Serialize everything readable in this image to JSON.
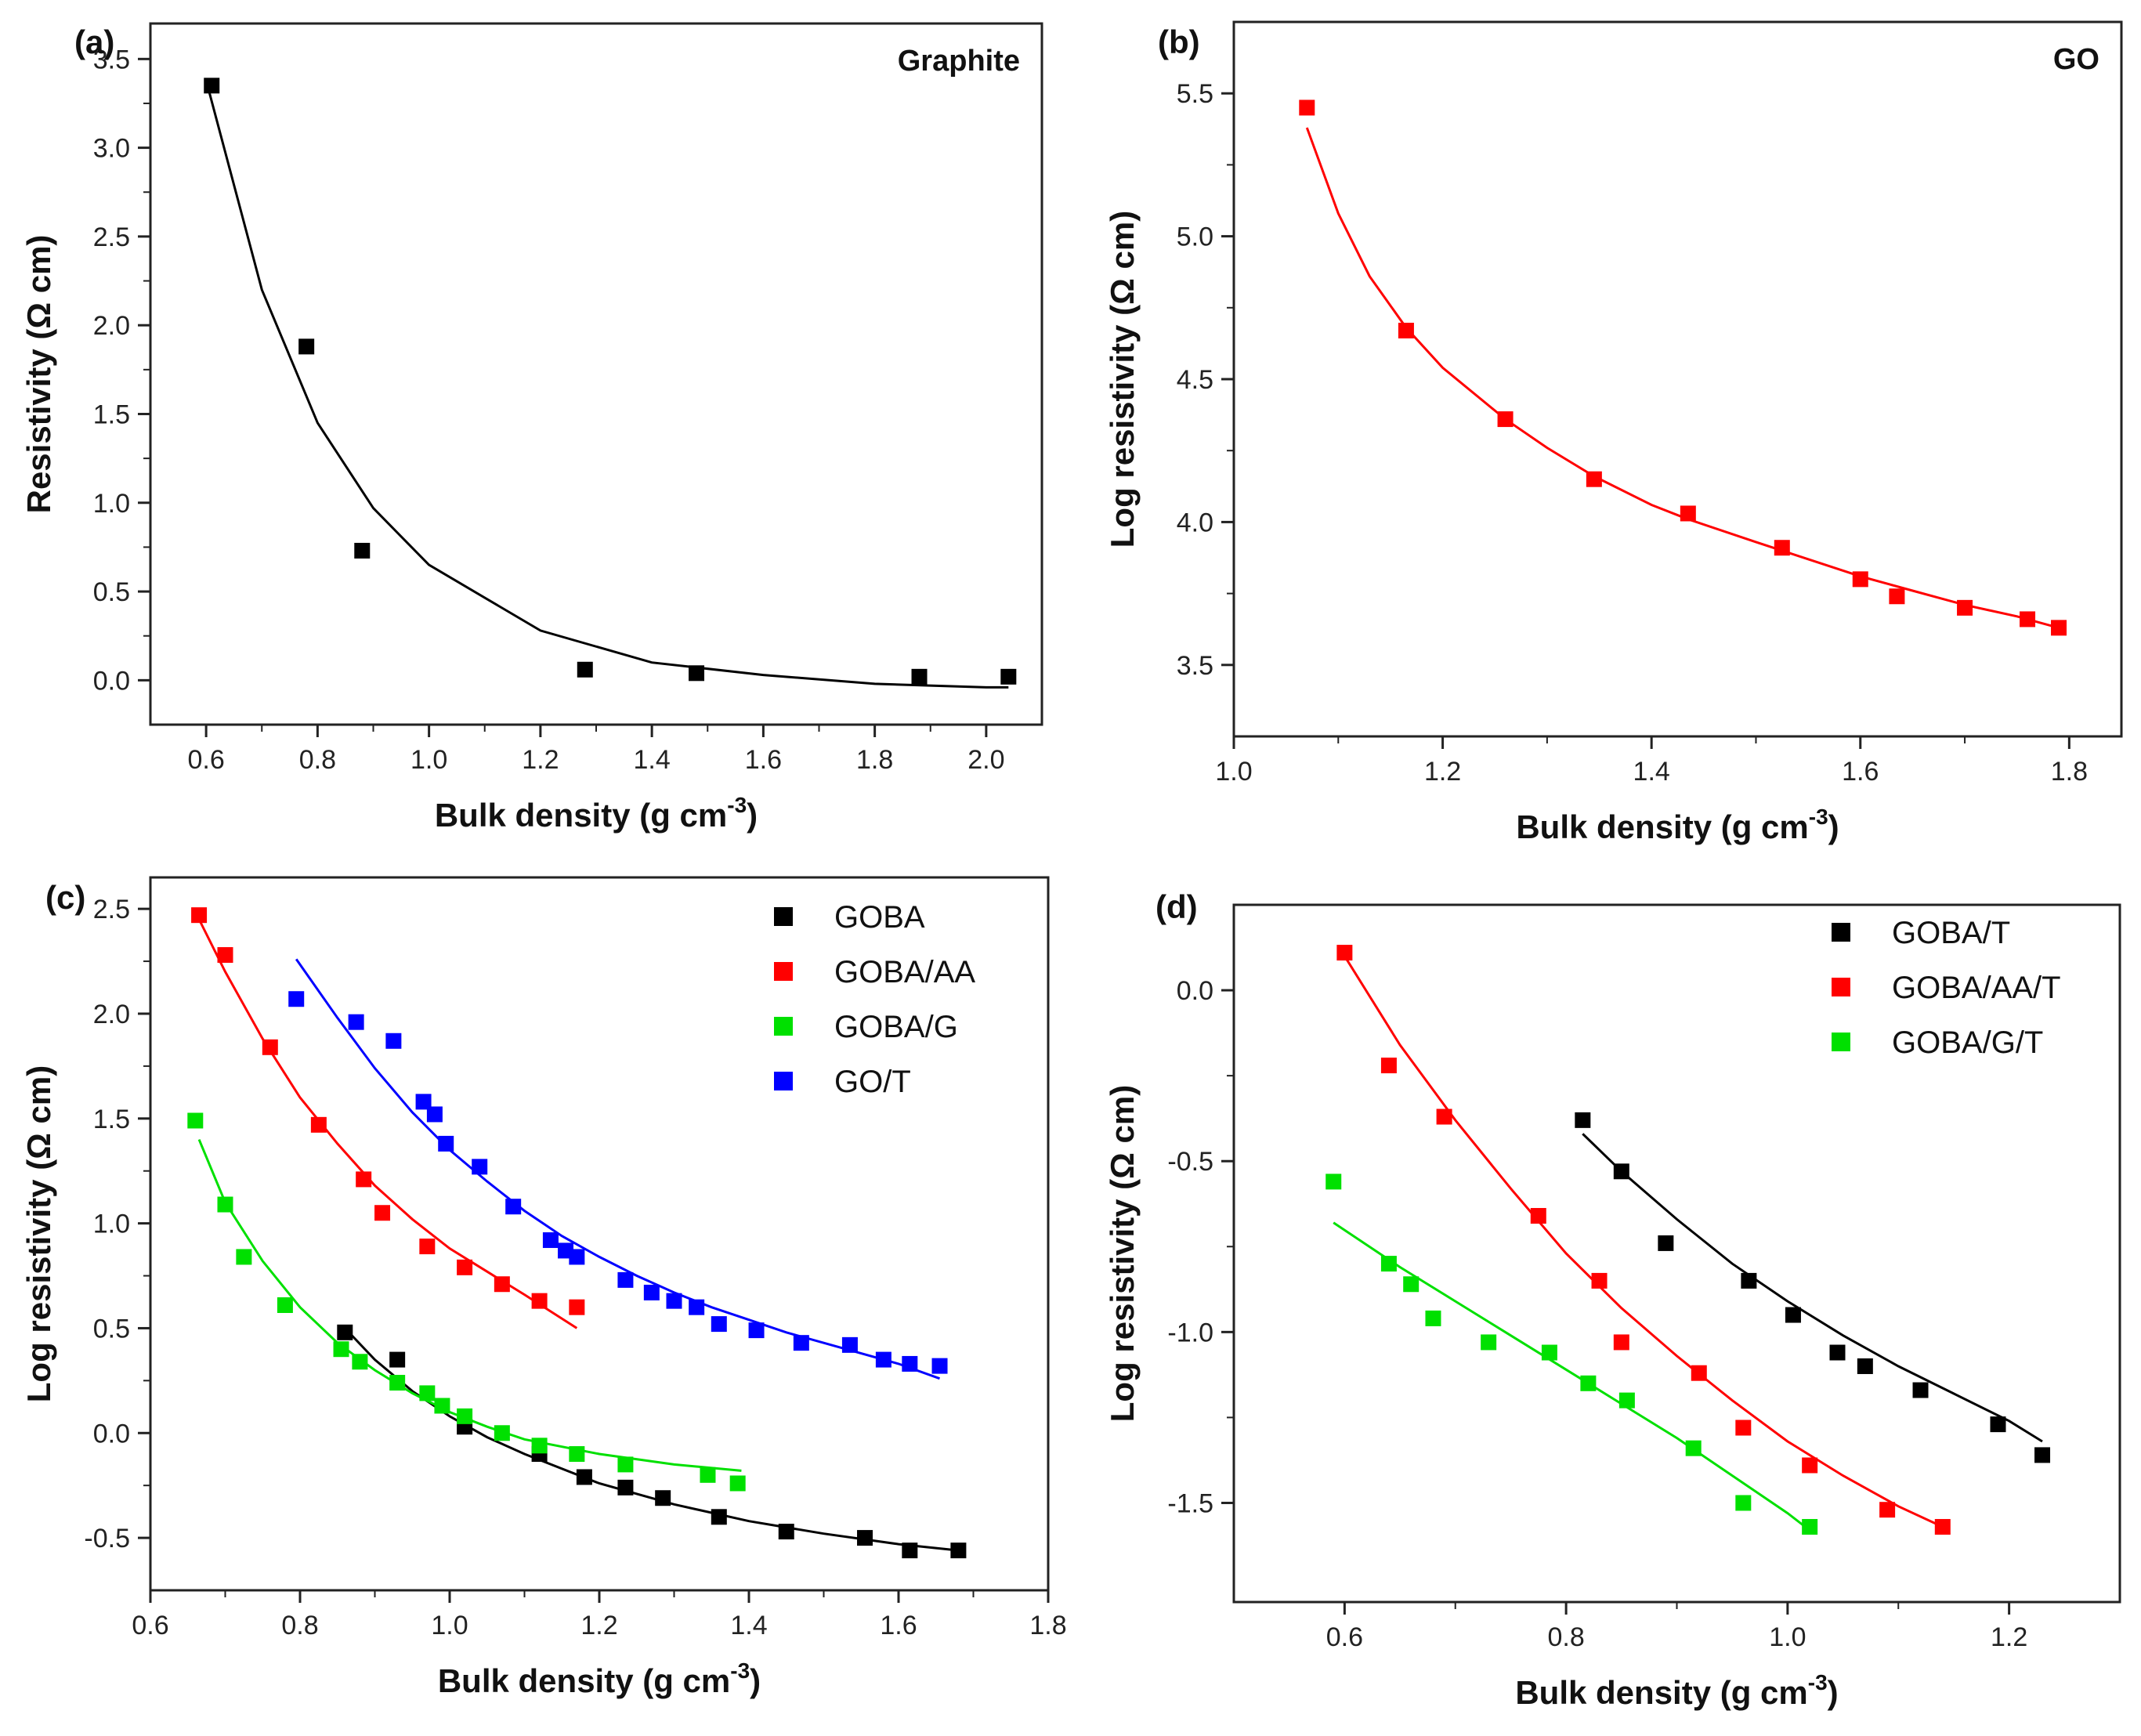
{
  "chart_data": [
    {
      "type": "scatter",
      "panel": "(a)",
      "title": "Graphite",
      "xlabel": "Bulk density (g cm",
      "xlabel_sup": "-3",
      "xlabel_end": ")",
      "ylabel": "Resistivity (Ω cm)",
      "xlim": [
        0.5,
        2.1
      ],
      "ylim": [
        -0.25,
        3.7
      ],
      "xticks": [
        0.6,
        0.8,
        1.0,
        1.2,
        1.4,
        1.6,
        1.8,
        2.0
      ],
      "xtick_labels": [
        "0.6",
        "0.8",
        "1.0",
        "1.2",
        "1.4",
        "1.6",
        "1.8",
        "2.0"
      ],
      "yticks": [
        0.0,
        0.5,
        1.0,
        1.5,
        2.0,
        2.5,
        3.0,
        3.5
      ],
      "ytick_labels": [
        "0.0",
        "0.5",
        "1.0",
        "1.5",
        "2.0",
        "2.5",
        "3.0",
        "3.5"
      ],
      "series": [
        {
          "name": "Graphite",
          "color": "#000000",
          "x": [
            0.61,
            0.78,
            0.88,
            1.28,
            1.48,
            1.88,
            2.04
          ],
          "y": [
            3.35,
            1.88,
            0.73,
            0.06,
            0.04,
            0.02,
            0.02
          ],
          "fit": {
            "x0": 0.6,
            "x1": 2.04,
            "pts": [
              [
                0.6,
                3.38
              ],
              [
                0.7,
                2.2
              ],
              [
                0.8,
                1.45
              ],
              [
                0.9,
                0.97
              ],
              [
                1.0,
                0.65
              ],
              [
                1.2,
                0.28
              ],
              [
                1.4,
                0.1
              ],
              [
                1.6,
                0.03
              ],
              [
                1.8,
                -0.02
              ],
              [
                2.0,
                -0.04
              ],
              [
                2.04,
                -0.04
              ]
            ]
          }
        }
      ]
    },
    {
      "type": "scatter",
      "panel": "(b)",
      "title": "GO",
      "xlabel": "Bulk density (g cm",
      "xlabel_sup": "-3",
      "xlabel_end": ")",
      "ylabel": "Log resistivity (Ω cm)",
      "xlim": [
        1.0,
        1.85
      ],
      "ylim": [
        3.25,
        5.75
      ],
      "xticks": [
        1.0,
        1.2,
        1.4,
        1.6,
        1.8
      ],
      "xtick_labels": [
        "1.0",
        "1.2",
        "1.4",
        "1.6",
        "1.8"
      ],
      "yticks": [
        3.5,
        4.0,
        4.5,
        5.0,
        5.5
      ],
      "ytick_labels": [
        "3.5",
        "4.0",
        "4.5",
        "5.0",
        "5.5"
      ],
      "series": [
        {
          "name": "GO",
          "color": "#ff0000",
          "x": [
            1.07,
            1.165,
            1.26,
            1.345,
            1.435,
            1.525,
            1.6,
            1.635,
            1.7,
            1.76,
            1.79
          ],
          "y": [
            5.45,
            4.67,
            4.36,
            4.15,
            4.03,
            3.91,
            3.8,
            3.74,
            3.7,
            3.66,
            3.63
          ],
          "fit": {
            "x0": 1.07,
            "x1": 1.79,
            "pts": [
              [
                1.07,
                5.38
              ],
              [
                1.1,
                5.08
              ],
              [
                1.13,
                4.86
              ],
              [
                1.165,
                4.68
              ],
              [
                1.2,
                4.54
              ],
              [
                1.26,
                4.36
              ],
              [
                1.3,
                4.26
              ],
              [
                1.345,
                4.16
              ],
              [
                1.4,
                4.06
              ],
              [
                1.435,
                4.01
              ],
              [
                1.5,
                3.93
              ],
              [
                1.55,
                3.87
              ],
              [
                1.6,
                3.81
              ],
              [
                1.65,
                3.76
              ],
              [
                1.7,
                3.71
              ],
              [
                1.75,
                3.67
              ],
              [
                1.79,
                3.63
              ]
            ]
          }
        }
      ]
    },
    {
      "type": "scatter",
      "panel": "(c)",
      "title": "",
      "xlabel": "Bulk density (g cm",
      "xlabel_sup": "-3",
      "xlabel_end": ")",
      "ylabel": "Log resistivity (Ω cm)",
      "xlim": [
        0.6,
        1.8
      ],
      "ylim": [
        -0.75,
        2.65
      ],
      "xticks": [
        0.6,
        0.8,
        1.0,
        1.2,
        1.4,
        1.6,
        1.8
      ],
      "xtick_labels": [
        "0.6",
        "0.8",
        "1.0",
        "1.2",
        "1.4",
        "1.6",
        "1.8"
      ],
      "yticks": [
        -0.5,
        0.0,
        0.5,
        1.0,
        1.5,
        2.0,
        2.5
      ],
      "ytick_labels": [
        "-0.5",
        "0.0",
        "0.5",
        "1.0",
        "1.5",
        "2.0",
        "2.5"
      ],
      "series": [
        {
          "name": "GOBA",
          "legend": "GOBA",
          "color": "#000000",
          "x": [
            0.86,
            0.93,
            1.02,
            1.12,
            1.18,
            1.235,
            1.285,
            1.36,
            1.45,
            1.555,
            1.615,
            1.68
          ],
          "y": [
            0.48,
            0.35,
            0.03,
            -0.1,
            -0.21,
            -0.26,
            -0.31,
            -0.4,
            -0.47,
            -0.5,
            -0.56,
            -0.56
          ],
          "fit": {
            "x0": 0.86,
            "x1": 1.68,
            "pts": [
              [
                0.86,
                0.5
              ],
              [
                0.9,
                0.35
              ],
              [
                0.95,
                0.2
              ],
              [
                1.0,
                0.08
              ],
              [
                1.05,
                -0.02
              ],
              [
                1.1,
                -0.1
              ],
              [
                1.2,
                -0.24
              ],
              [
                1.3,
                -0.34
              ],
              [
                1.4,
                -0.42
              ],
              [
                1.5,
                -0.48
              ],
              [
                1.6,
                -0.53
              ],
              [
                1.68,
                -0.56
              ]
            ]
          }
        },
        {
          "name": "GOBA/AA",
          "legend": "GOBA/AA",
          "color": "#ff0000",
          "x": [
            0.665,
            0.7,
            0.76,
            0.825,
            0.885,
            0.91,
            0.97,
            1.02,
            1.07,
            1.12,
            1.17
          ],
          "y": [
            2.47,
            2.28,
            1.84,
            1.47,
            1.21,
            1.05,
            0.89,
            0.79,
            0.71,
            0.63,
            0.6
          ],
          "fit": {
            "x0": 0.665,
            "x1": 1.17,
            "pts": [
              [
                0.665,
                2.45
              ],
              [
                0.7,
                2.2
              ],
              [
                0.75,
                1.88
              ],
              [
                0.8,
                1.6
              ],
              [
                0.85,
                1.38
              ],
              [
                0.9,
                1.18
              ],
              [
                0.95,
                1.02
              ],
              [
                1.0,
                0.88
              ],
              [
                1.05,
                0.77
              ],
              [
                1.1,
                0.66
              ],
              [
                1.17,
                0.5
              ]
            ]
          }
        },
        {
          "name": "GOBA/G",
          "legend": "GOBA/G",
          "color": "#00e000",
          "x": [
            0.66,
            0.7,
            0.725,
            0.78,
            0.855,
            0.88,
            0.93,
            0.97,
            0.99,
            1.02,
            1.07,
            1.12,
            1.17,
            1.235,
            1.345,
            1.385
          ],
          "y": [
            1.49,
            1.09,
            0.84,
            0.61,
            0.4,
            0.34,
            0.24,
            0.19,
            0.13,
            0.08,
            0.0,
            -0.06,
            -0.1,
            -0.15,
            -0.2,
            -0.24
          ],
          "fit": {
            "x0": 0.665,
            "x1": 1.39,
            "pts": [
              [
                0.665,
                1.4
              ],
              [
                0.7,
                1.1
              ],
              [
                0.75,
                0.82
              ],
              [
                0.8,
                0.6
              ],
              [
                0.85,
                0.43
              ],
              [
                0.9,
                0.3
              ],
              [
                0.95,
                0.19
              ],
              [
                1.0,
                0.1
              ],
              [
                1.05,
                0.03
              ],
              [
                1.1,
                -0.03
              ],
              [
                1.2,
                -0.1
              ],
              [
                1.3,
                -0.15
              ],
              [
                1.39,
                -0.18
              ]
            ]
          }
        },
        {
          "name": "GO/T",
          "legend": " GO/T",
          "color": "#0000ff",
          "x": [
            0.795,
            0.875,
            0.925,
            0.965,
            0.98,
            0.995,
            1.04,
            1.085,
            1.135,
            1.155,
            1.17,
            1.235,
            1.27,
            1.3,
            1.33,
            1.36,
            1.41,
            1.47,
            1.535,
            1.58,
            1.615,
            1.655
          ],
          "y": [
            2.07,
            1.96,
            1.87,
            1.58,
            1.52,
            1.38,
            1.27,
            1.08,
            0.92,
            0.87,
            0.84,
            0.73,
            0.67,
            0.63,
            0.6,
            0.52,
            0.49,
            0.43,
            0.42,
            0.35,
            0.33,
            0.32
          ],
          "fit": {
            "x0": 0.795,
            "x1": 1.655,
            "pts": [
              [
                0.795,
                2.26
              ],
              [
                0.85,
                1.98
              ],
              [
                0.9,
                1.74
              ],
              [
                0.95,
                1.53
              ],
              [
                1.0,
                1.35
              ],
              [
                1.05,
                1.2
              ],
              [
                1.1,
                1.06
              ],
              [
                1.15,
                0.94
              ],
              [
                1.2,
                0.84
              ],
              [
                1.25,
                0.75
              ],
              [
                1.3,
                0.67
              ],
              [
                1.35,
                0.6
              ],
              [
                1.4,
                0.54
              ],
              [
                1.45,
                0.48
              ],
              [
                1.5,
                0.43
              ],
              [
                1.55,
                0.38
              ],
              [
                1.6,
                0.33
              ],
              [
                1.655,
                0.26
              ]
            ]
          }
        }
      ]
    },
    {
      "type": "scatter",
      "panel": "(d)",
      "title": "",
      "xlabel": "Bulk density (g cm",
      "xlabel_sup": "-3",
      "xlabel_end": ")",
      "ylabel": "Log resistivity (Ω cm)",
      "xlim": [
        0.5,
        1.3
      ],
      "ylim": [
        -1.79,
        0.25
      ],
      "xticks": [
        0.6,
        0.8,
        1.0,
        1.2
      ],
      "xtick_labels": [
        "0.6",
        "0.8",
        "1.0",
        "1.2"
      ],
      "yticks": [
        -1.5,
        -1.0,
        -0.5,
        0.0
      ],
      "ytick_labels": [
        "-1.5",
        "-1.0",
        "-0.5",
        "0.0"
      ],
      "series": [
        {
          "name": "GOBA/T",
          "legend": "GOBA/T",
          "color": "#000000",
          "x": [
            0.815,
            0.85,
            0.89,
            0.965,
            1.005,
            1.045,
            1.07,
            1.12,
            1.19,
            1.23
          ],
          "y": [
            -0.38,
            -0.53,
            -0.74,
            -0.85,
            -0.95,
            -1.06,
            -1.1,
            -1.17,
            -1.27,
            -1.36
          ],
          "fit": {
            "x0": 0.815,
            "x1": 1.23,
            "pts": [
              [
                0.815,
                -0.42
              ],
              [
                0.85,
                -0.53
              ],
              [
                0.9,
                -0.67
              ],
              [
                0.95,
                -0.8
              ],
              [
                1.0,
                -0.91
              ],
              [
                1.05,
                -1.01
              ],
              [
                1.1,
                -1.1
              ],
              [
                1.15,
                -1.18
              ],
              [
                1.2,
                -1.26
              ],
              [
                1.23,
                -1.32
              ]
            ]
          }
        },
        {
          "name": "GOBA/AA/T",
          "legend": "GOBA/AA/T",
          "color": "#ff0000",
          "x": [
            0.6,
            0.64,
            0.69,
            0.775,
            0.83,
            0.85,
            0.92,
            0.96,
            1.02,
            1.09,
            1.14
          ],
          "y": [
            0.11,
            -0.22,
            -0.37,
            -0.66,
            -0.85,
            -1.03,
            -1.12,
            -1.28,
            -1.39,
            -1.52,
            -1.57
          ],
          "fit": {
            "x0": 0.6,
            "x1": 1.14,
            "pts": [
              [
                0.6,
                0.1
              ],
              [
                0.65,
                -0.16
              ],
              [
                0.7,
                -0.38
              ],
              [
                0.75,
                -0.58
              ],
              [
                0.8,
                -0.77
              ],
              [
                0.85,
                -0.93
              ],
              [
                0.9,
                -1.07
              ],
              [
                0.95,
                -1.2
              ],
              [
                1.0,
                -1.32
              ],
              [
                1.05,
                -1.42
              ],
              [
                1.1,
                -1.51
              ],
              [
                1.14,
                -1.57
              ]
            ]
          }
        },
        {
          "name": "GOBA/G/T",
          "legend": "GOBA/G/T",
          "color": "#00e000",
          "x": [
            0.59,
            0.64,
            0.66,
            0.68,
            0.73,
            0.785,
            0.82,
            0.855,
            0.915,
            0.96,
            1.02
          ],
          "y": [
            -0.56,
            -0.8,
            -0.86,
            -0.96,
            -1.03,
            -1.06,
            -1.15,
            -1.2,
            -1.34,
            -1.5,
            -1.57
          ],
          "fit": {
            "x0": 0.59,
            "x1": 1.02,
            "pts": [
              [
                0.59,
                -0.68
              ],
              [
                0.65,
                -0.81
              ],
              [
                0.7,
                -0.91
              ],
              [
                0.75,
                -1.01
              ],
              [
                0.8,
                -1.11
              ],
              [
                0.85,
                -1.21
              ],
              [
                0.9,
                -1.31
              ],
              [
                0.95,
                -1.42
              ],
              [
                1.0,
                -1.53
              ],
              [
                1.02,
                -1.58
              ]
            ]
          }
        }
      ]
    }
  ]
}
